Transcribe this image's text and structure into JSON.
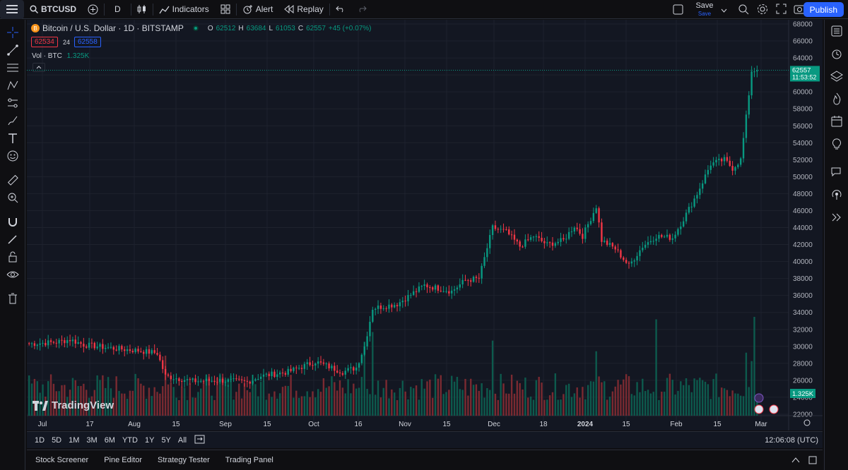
{
  "topbar": {
    "symbol": "BTCUSD",
    "interval": "D",
    "indicators": "Indicators",
    "alert": "Alert",
    "replay": "Replay",
    "save": "Save",
    "save_sub": "Save",
    "publish": "Publish"
  },
  "legend": {
    "title": "Bitcoin / U.S. Dollar · 1D · BITSTAMP",
    "o_label": "O",
    "o_val": "62512",
    "h_label": "H",
    "h_val": "63684",
    "l_label": "L",
    "l_val": "61053",
    "c_label": "C",
    "c_val": "62557",
    "change": "+45 (+0.07%)",
    "bid": "62534",
    "spread": "24",
    "ask": "62558",
    "vol_label": "Vol · BTC",
    "vol_val": "1.325K"
  },
  "price_label": "62557",
  "countdown": "11:53:52",
  "vol_axis_label": "1.325K",
  "logo": "TradingView",
  "periods": [
    "1D",
    "5D",
    "1M",
    "3M",
    "6M",
    "YTD",
    "1Y",
    "5Y",
    "All"
  ],
  "clock": "12:06:08 (UTC)",
  "bottom_tabs": [
    "Stock Screener",
    "Pine Editor",
    "Strategy Tester",
    "Trading Panel"
  ],
  "colors": {
    "up": "#089981",
    "down": "#f23645",
    "bg": "#131722",
    "grid": "#1e222d"
  },
  "chart_data": {
    "type": "candlestick",
    "title": "Bitcoin / U.S. Dollar · 1D · BITSTAMP",
    "ylim": [
      21000,
      68500
    ],
    "y_ticks": [
      68000,
      66000,
      64000,
      62000,
      60000,
      58000,
      56000,
      54000,
      52000,
      50000,
      48000,
      46000,
      44000,
      42000,
      40000,
      38000,
      36000,
      34000,
      32000,
      30000,
      28000,
      26000,
      24000,
      22000
    ],
    "x_ticks": [
      "Jul",
      "17",
      "Aug",
      "15",
      "Sep",
      "15",
      "Oct",
      "16",
      "Nov",
      "15",
      "Dec",
      "18",
      "2024",
      "15",
      "Feb",
      "15",
      "Mar"
    ],
    "close_keypoints": [
      {
        "day": 0,
        "close": 30300
      },
      {
        "day": 10,
        "close": 30500
      },
      {
        "day": 15,
        "close": 30800
      },
      {
        "day": 20,
        "close": 30200
      },
      {
        "day": 30,
        "close": 29800
      },
      {
        "day": 40,
        "close": 29500
      },
      {
        "day": 47,
        "close": 29200
      },
      {
        "day": 50,
        "close": 26500
      },
      {
        "day": 60,
        "close": 25900
      },
      {
        "day": 70,
        "close": 26000
      },
      {
        "day": 80,
        "close": 25800
      },
      {
        "day": 85,
        "close": 26500
      },
      {
        "day": 95,
        "close": 27000
      },
      {
        "day": 105,
        "close": 28200
      },
      {
        "day": 115,
        "close": 27000
      },
      {
        "day": 120,
        "close": 27500
      },
      {
        "day": 123,
        "close": 30000
      },
      {
        "day": 126,
        "close": 34500
      },
      {
        "day": 135,
        "close": 35000
      },
      {
        "day": 145,
        "close": 37200
      },
      {
        "day": 155,
        "close": 36500
      },
      {
        "day": 160,
        "close": 37800
      },
      {
        "day": 165,
        "close": 38000
      },
      {
        "day": 170,
        "close": 44000
      },
      {
        "day": 175,
        "close": 43500
      },
      {
        "day": 180,
        "close": 41800
      },
      {
        "day": 185,
        "close": 43000
      },
      {
        "day": 190,
        "close": 42000
      },
      {
        "day": 196,
        "close": 42500
      },
      {
        "day": 200,
        "close": 44200
      },
      {
        "day": 203,
        "close": 43000
      },
      {
        "day": 208,
        "close": 46500
      },
      {
        "day": 210,
        "close": 42500
      },
      {
        "day": 215,
        "close": 41500
      },
      {
        "day": 220,
        "close": 39500
      },
      {
        "day": 225,
        "close": 41800
      },
      {
        "day": 230,
        "close": 43000
      },
      {
        "day": 236,
        "close": 42800
      },
      {
        "day": 240,
        "close": 45000
      },
      {
        "day": 245,
        "close": 48000
      },
      {
        "day": 250,
        "close": 51500
      },
      {
        "day": 255,
        "close": 52000
      },
      {
        "day": 258,
        "close": 51000
      },
      {
        "day": 261,
        "close": 52000
      },
      {
        "day": 263,
        "close": 57000
      },
      {
        "day": 265,
        "close": 62500
      },
      {
        "day": 267,
        "close": 62557
      }
    ],
    "last_price": 62557,
    "volume_axis_label": "1.325K",
    "series_colors": {
      "up": "#089981",
      "down": "#f23645"
    }
  }
}
